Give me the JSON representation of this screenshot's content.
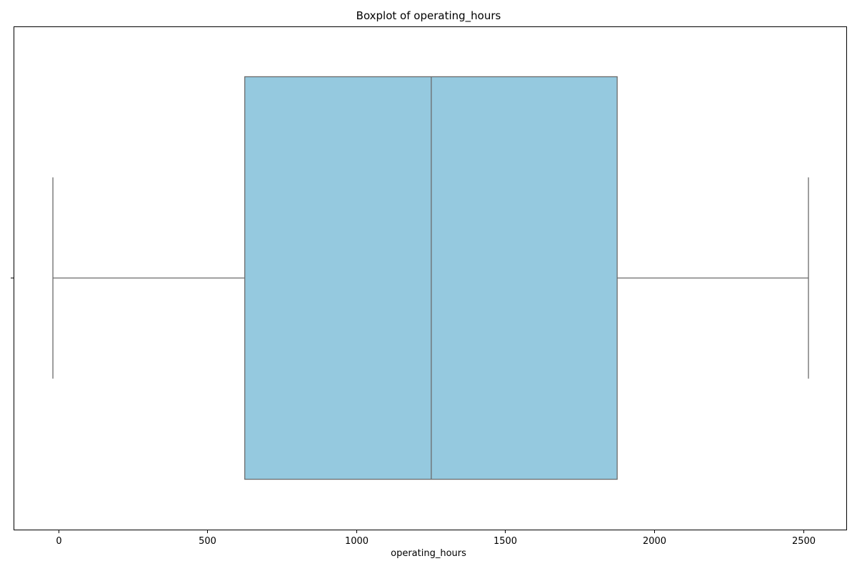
{
  "chart_data": {
    "type": "boxplot",
    "title": "Boxplot of operating_hours",
    "xlabel": "operating_hours",
    "ylabel": "",
    "xlim": [
      -150,
      2645
    ],
    "xticks": [
      0,
      500,
      1000,
      1500,
      2000,
      2500
    ],
    "xtick_labels": [
      "0",
      "500",
      "1000",
      "1500",
      "2000",
      "2500"
    ],
    "grid": false,
    "box": {
      "whisker_low": -18,
      "q1": 626,
      "median": 1252,
      "q3": 1876,
      "whisker_high": 2518
    },
    "colors": {
      "box_fill": "#95c9df",
      "box_edge": "#6b6b6b",
      "axes": "#000000"
    }
  }
}
